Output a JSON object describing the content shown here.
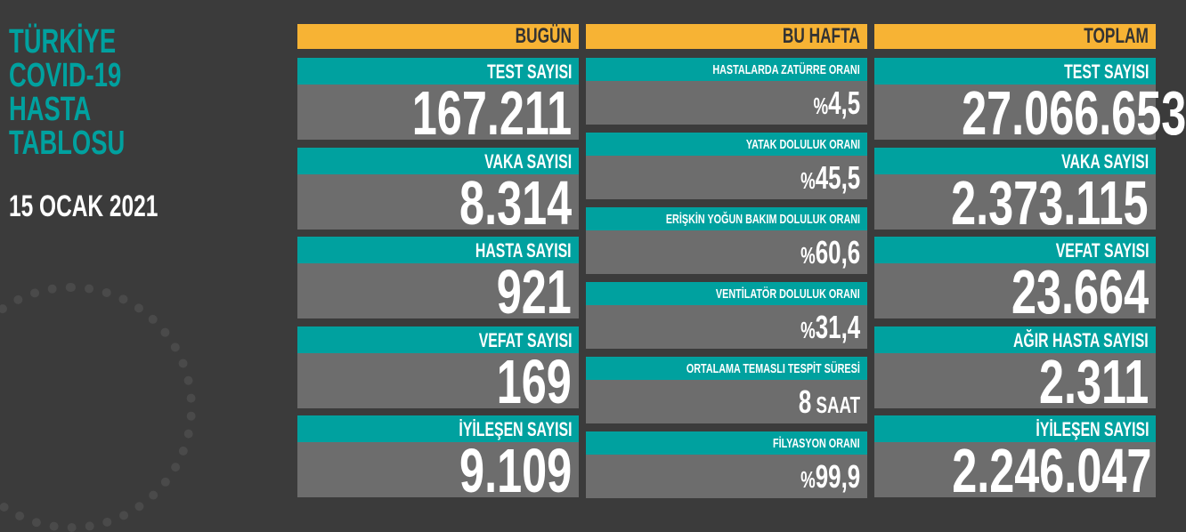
{
  "title": [
    "TÜRKİYE",
    "COVID-19",
    "HASTA",
    "TABLOSU"
  ],
  "date": "15 OCAK 2021",
  "colors": {
    "accent": "#00a19f",
    "header": "#f7b334",
    "value_bg": "#6d6d6d",
    "background": "#3b3b3b"
  },
  "today": {
    "header": "BUGÜN",
    "items": [
      {
        "label": "TEST SAYISI",
        "value": "167.211"
      },
      {
        "label": "VAKA SAYISI",
        "value": "8.314"
      },
      {
        "label": "HASTA SAYISI",
        "value": "921"
      },
      {
        "label": "VEFAT SAYISI",
        "value": "169"
      },
      {
        "label": "İYİLEŞEN SAYISI",
        "value": "9.109"
      }
    ]
  },
  "week": {
    "header": "BU HAFTA",
    "items": [
      {
        "label": "HASTALARDA ZATÜRRE ORANI",
        "prefix": "%",
        "value": "4,5"
      },
      {
        "label": "YATAK DOLULUK ORANI",
        "prefix": "%",
        "value": "45,5"
      },
      {
        "label": "ERİŞKİN YOĞUN BAKIM DOLULUK ORANI",
        "prefix": "%",
        "value": "60,6"
      },
      {
        "label": "VENTİLATÖR DOLULUK ORANI",
        "prefix": "%",
        "value": "31,4"
      },
      {
        "label": "ORTALAMA TEMASLI TESPİT SÜRESİ",
        "value": "8",
        "suffix": " SAAT"
      },
      {
        "label": "FİLYASYON ORANI",
        "prefix": "%",
        "value": "99,9"
      }
    ]
  },
  "total": {
    "header": "TOPLAM",
    "items": [
      {
        "label": "TEST SAYISI",
        "value": "27.066.653"
      },
      {
        "label": "VAKA SAYISI",
        "value": "2.373.115"
      },
      {
        "label": "VEFAT SAYISI",
        "value": "23.664"
      },
      {
        "label": "AĞIR HASTA SAYISI",
        "value": "2.311"
      },
      {
        "label": "İYİLEŞEN SAYISI",
        "value": "2.246.047"
      }
    ]
  }
}
